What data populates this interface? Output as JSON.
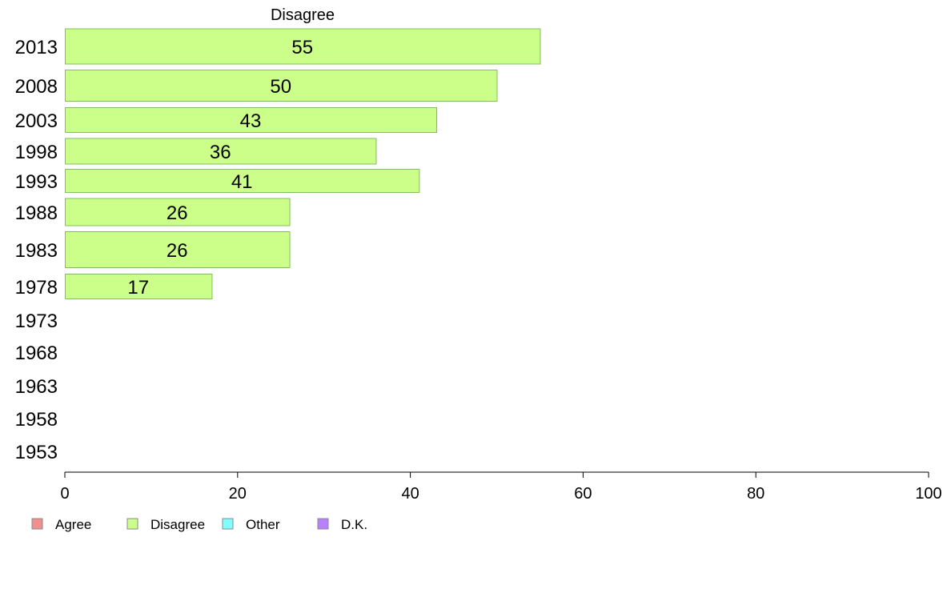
{
  "chart_data": {
    "type": "bar",
    "orientation": "horizontal",
    "title": "Disagree",
    "categories": [
      "2013",
      "2008",
      "2003",
      "1998",
      "1993",
      "1988",
      "1983",
      "1978",
      "1973",
      "1968",
      "1963",
      "1958",
      "1953"
    ],
    "series": [
      {
        "name": "Disagree",
        "values": [
          55,
          50,
          43,
          36,
          41,
          26,
          26,
          17,
          null,
          null,
          null,
          null,
          null
        ]
      }
    ],
    "xlim": [
      0,
      100
    ],
    "xticks": [
      0,
      20,
      40,
      60,
      80,
      100
    ],
    "legend": {
      "placement": "bottom-left",
      "entries": [
        {
          "label": "Agree",
          "color": "#f28e8e"
        },
        {
          "label": "Disagree",
          "color": "#ccff8a"
        },
        {
          "label": "Other",
          "color": "#80ffff"
        },
        {
          "label": "D.K.",
          "color": "#b780ff"
        }
      ]
    },
    "bar_color": "#ccff8a",
    "bar_stroke": "#7fbf5f",
    "grid": false
  }
}
